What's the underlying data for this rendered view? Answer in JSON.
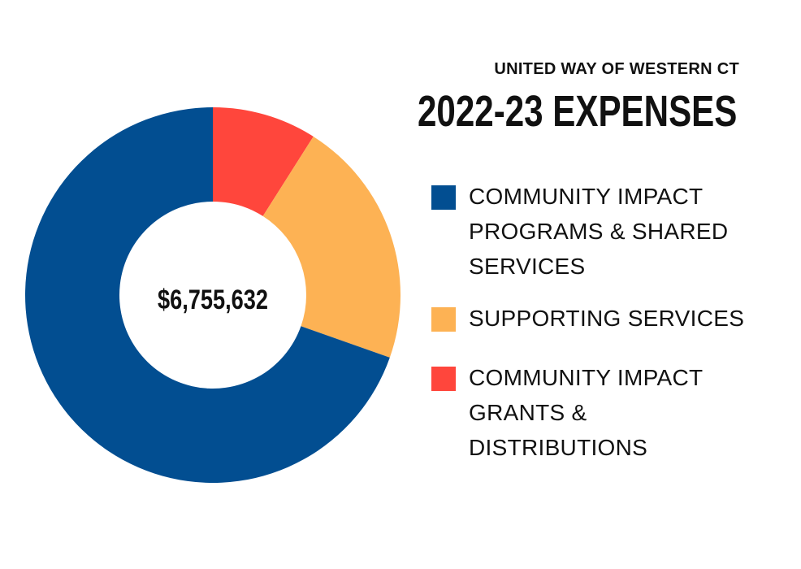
{
  "header": {
    "org_name": "UNITED WAY OF WESTERN CT",
    "title": "2022-23 EXPENSES"
  },
  "chart_data": {
    "type": "pie",
    "variant": "donut",
    "center_label": "$6,755,632",
    "slices": [
      {
        "label": "COMMUNITY IMPACT PROGRAMS & SHARED SERVICES",
        "value": 69.6,
        "color": "#024e91"
      },
      {
        "label": "SUPPORTING SERVICES",
        "value": 21.4,
        "color": "#fdb254"
      },
      {
        "label": "COMMUNITY IMPACT GRANTS & DISTRIBUTIONS",
        "value": 9.0,
        "color": "#ff463c"
      }
    ],
    "slice_order_clockwise_from_top": [
      "COMMUNITY IMPACT GRANTS & DISTRIBUTIONS",
      "SUPPORTING SERVICES",
      "COMMUNITY IMPACT PROGRAMS & SHARED SERVICES"
    ],
    "legend_position": "right"
  },
  "legend": {
    "items": [
      {
        "label": "COMMUNITY IMPACT PROGRAMS & SHARED SERVICES",
        "lines": [
          "COMMUNITY IMPACT",
          "PROGRAMS & SHARED",
          "SERVICES"
        ],
        "color": "#024e91"
      },
      {
        "label": "SUPPORTING SERVICES",
        "lines": [
          "SUPPORTING SERVICES"
        ],
        "color": "#fdb254"
      },
      {
        "label": "COMMUNITY IMPACT GRANTS & DISTRIBUTIONS",
        "lines": [
          "COMMUNITY IMPACT",
          "GRANTS &",
          "DISTRIBUTIONS"
        ],
        "color": "#ff463c"
      }
    ]
  }
}
